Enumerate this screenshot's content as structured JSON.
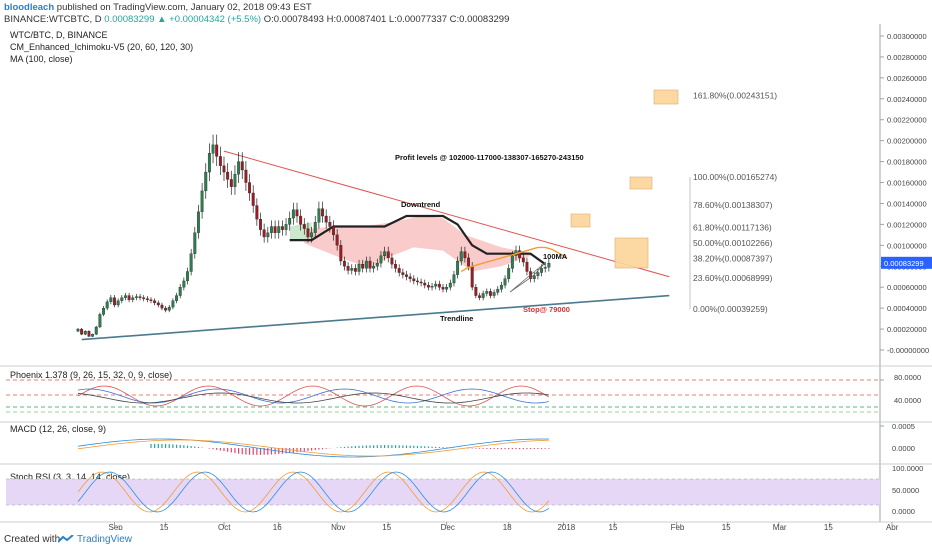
{
  "header": {
    "author": "bloodleach",
    "published": "published on TradingView.com, January 02, 2018 09:43 EST",
    "ticker_line": "BINANCE:WTCBTC, D",
    "last": "0.00083299",
    "change": "+0.00004342 (+5.5%)",
    "ohlc": "O:0.00078493  H:0.00087401  L:0.00077337  C:0.00083299"
  },
  "main_pane": {
    "title": "WTC/BTC, D, BINANCE",
    "indicator1": "CM_Enhanced_Ichimoku-V5 (20, 60, 120, 30)",
    "indicator2": "MA (100, close)"
  },
  "annotations": {
    "profit": "Profit levels @ 102000-117000-138307-165270-243150",
    "downtrend": "Downtrend",
    "trendline": "Trendline",
    "stop": "Stop@ 79000",
    "ma100": "100MA"
  },
  "fib_levels": [
    {
      "label": "161.80%(0.00243151)",
      "value": 0.00243151
    },
    {
      "label": "100.00%(0.00165274)",
      "value": 0.00165274
    },
    {
      "label": "78.60%(0.00138307)",
      "value": 0.00138307
    },
    {
      "label": "61.80%(0.00117136)",
      "value": 0.00117136
    },
    {
      "label": "50.00%(0.00102266)",
      "value": 0.00102266
    },
    {
      "label": "38.20%(0.00087397)",
      "value": 0.00087397
    },
    {
      "label": "23.60%(0.00068999)",
      "value": 0.00068999
    },
    {
      "label": "0.00%(0.00039259)",
      "value": 0.00039259
    }
  ],
  "price_axis": [
    "0.00300000",
    "0.00280000",
    "0.00260000",
    "0.00240000",
    "0.00220000",
    "0.00200000",
    "0.00180000",
    "0.00160000",
    "0.00140000",
    "0.00120000",
    "0.00100000",
    "0.00080000",
    "0.00060000",
    "0.00040000",
    "0.00020000",
    "-0.00000000"
  ],
  "last_price_label": "0.00083299",
  "time_axis": [
    "Sep",
    "15",
    "Oct",
    "16",
    "Nov",
    "15",
    "Dec",
    "18",
    "2018",
    "15",
    "Feb",
    "15",
    "Mar",
    "15",
    "Apr"
  ],
  "sub_panes": [
    {
      "title": "Phoenix 1.378 (9, 26, 15, 32, 0, 9, close)",
      "ticks": [
        "80.0000",
        "40.0000"
      ]
    },
    {
      "title": "MACD (12, 26, close, 9)",
      "ticks": [
        "0.0005",
        "0.0000"
      ]
    },
    {
      "title": "Stoch RSI (3, 3, 14, 14, close)",
      "ticks": [
        "100.0000",
        "50.0000",
        "0.0000"
      ]
    }
  ],
  "footer": {
    "created": "Created with",
    "brand": "TradingView"
  },
  "colors": {
    "up": "#2e7d4f",
    "down": "#9b1c22",
    "trend_down": "#e05252",
    "trend_up": "#4a7a8c",
    "cloud": "#f7b9b9",
    "ma": "#f39c34",
    "fib_box": "#fcd59a",
    "last_price": "#2962ff"
  },
  "chart_data": {
    "type": "candlestick",
    "symbol": "WTC/BTC",
    "interval": "D",
    "ylim": [
      -0.0001,
      0.0031
    ],
    "x_start": "2017-08-22",
    "last_bar": "2018-01-02",
    "trendlines": [
      {
        "name": "Downtrend",
        "from": [
          "2017-10-01",
          0.0019
        ],
        "to": [
          "2018-01-31",
          0.0007
        ]
      },
      {
        "name": "Trendline",
        "from": [
          "2017-08-23",
          0.0001
        ],
        "to": [
          "2018-01-31",
          0.00052
        ]
      }
    ],
    "close": [
      0.0002,
      0.00015,
      0.00018,
      0.00013,
      0.00015,
      0.00022,
      0.00034,
      0.0004,
      0.00046,
      0.0005,
      0.00043,
      0.00047,
      0.0005,
      0.00052,
      0.00048,
      0.0005,
      0.00051,
      0.0005,
      0.00049,
      0.00048,
      0.00047,
      0.00045,
      0.00043,
      0.0004,
      0.00038,
      0.00041,
      0.00047,
      0.00052,
      0.0006,
      0.00066,
      0.00075,
      0.00092,
      0.00112,
      0.00132,
      0.00152,
      0.0017,
      0.00188,
      0.00196,
      0.00185,
      0.00176,
      0.0017,
      0.00163,
      0.00156,
      0.00168,
      0.0018,
      0.00172,
      0.0016,
      0.0015,
      0.00138,
      0.00125,
      0.00115,
      0.00108,
      0.00112,
      0.00118,
      0.00112,
      0.00118,
      0.00115,
      0.0012,
      0.00126,
      0.00134,
      0.00128,
      0.0012,
      0.00116,
      0.00108,
      0.00112,
      0.00122,
      0.00135,
      0.00128,
      0.00122,
      0.00118,
      0.0011,
      0.001,
      0.00085,
      0.0008,
      0.00076,
      0.00078,
      0.00075,
      0.00082,
      0.00078,
      0.00085,
      0.00078,
      0.0008,
      0.00083,
      0.0009,
      0.00094,
      0.00088,
      0.00082,
      0.00078,
      0.00074,
      0.00072,
      0.0007,
      0.00068,
      0.00066,
      0.00065,
      0.00064,
      0.00062,
      0.0006,
      0.00061,
      0.00063,
      0.0006,
      0.00058,
      0.0006,
      0.00064,
      0.00072,
      0.00085,
      0.00094,
      0.00088,
      0.0008,
      0.0006,
      0.00052,
      0.0005,
      0.00054,
      0.00056,
      0.00052,
      0.00055,
      0.00058,
      0.00062,
      0.00068,
      0.00078,
      0.0009,
      0.00095,
      0.00088,
      0.00084,
      0.00075,
      0.00068,
      0.00071,
      0.00074,
      0.00078,
      0.00079,
      0.00083
    ],
    "ma100": {
      "start_index": 105,
      "values": [
        0.00075,
        0.00077,
        0.00079,
        0.0008,
        0.00081,
        0.00082,
        0.00083,
        0.00084,
        0.00085,
        0.00086,
        0.00087,
        0.00088,
        0.00089,
        0.0009,
        0.00091,
        0.00092,
        0.00093,
        0.00094,
        0.00095,
        0.00096,
        0.00097,
        0.00098,
        0.00098,
        0.00098,
        0.00097,
        0.00096,
        0.00094,
        0.00092,
        0.0009,
        0.00088
      ]
    }
  }
}
